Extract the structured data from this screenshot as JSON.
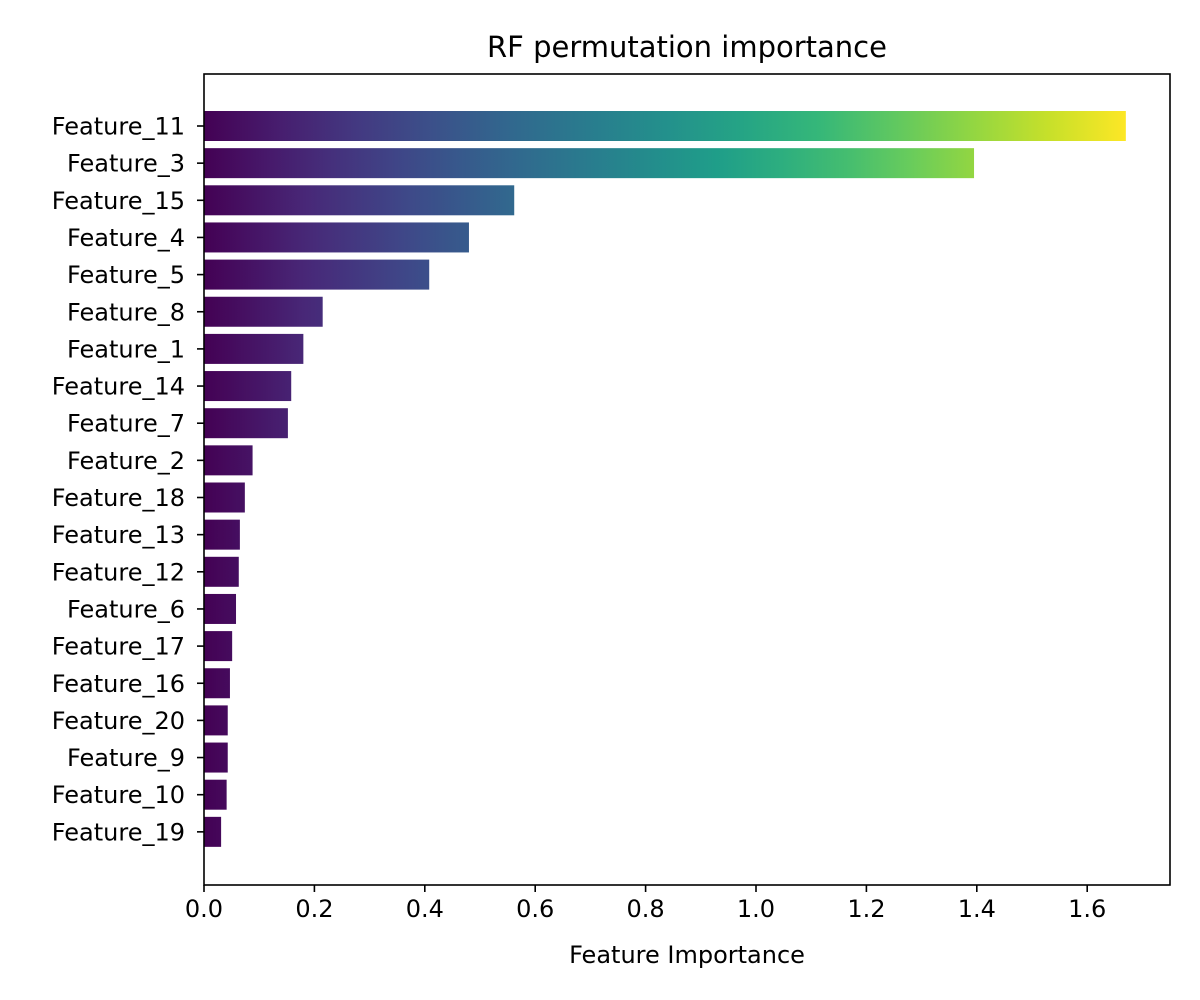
{
  "chart_data": {
    "type": "bar",
    "orientation": "horizontal",
    "title": "RF permutation importance",
    "xlabel": "Feature Importance",
    "ylabel": "",
    "xlim": [
      0,
      1.75
    ],
    "xticks": [
      0.0,
      0.2,
      0.4,
      0.6,
      0.8,
      1.0,
      1.2,
      1.4,
      1.6
    ],
    "xtick_labels": [
      "0.0",
      "0.2",
      "0.4",
      "0.6",
      "0.8",
      "1.0",
      "1.2",
      "1.4",
      "1.6"
    ],
    "grid": false,
    "colormap": "viridis",
    "categories": [
      "Feature_11",
      "Feature_3",
      "Feature_15",
      "Feature_4",
      "Feature_5",
      "Feature_8",
      "Feature_1",
      "Feature_14",
      "Feature_7",
      "Feature_2",
      "Feature_18",
      "Feature_13",
      "Feature_12",
      "Feature_6",
      "Feature_17",
      "Feature_16",
      "Feature_20",
      "Feature_9",
      "Feature_10",
      "Feature_19"
    ],
    "values": [
      1.67,
      1.395,
      0.562,
      0.48,
      0.408,
      0.215,
      0.18,
      0.158,
      0.152,
      0.088,
      0.074,
      0.065,
      0.063,
      0.058,
      0.051,
      0.047,
      0.043,
      0.043,
      0.041,
      0.031
    ]
  }
}
